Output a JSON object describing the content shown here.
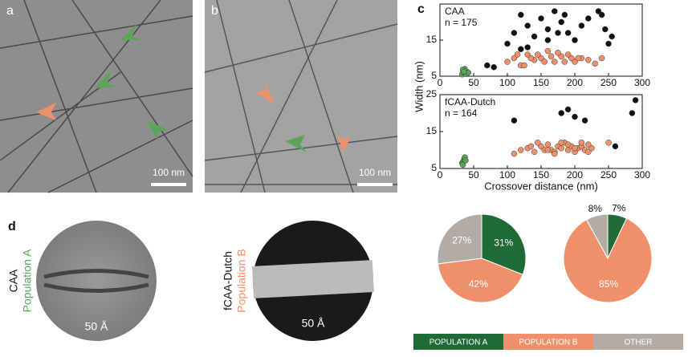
{
  "labels": {
    "panel_a": "a",
    "panel_b": "b",
    "panel_c": "c",
    "panel_d": "d",
    "scale_a": "100 nm",
    "scale_b": "100 nm",
    "d1_name": "CAA",
    "d1_population": "Population A",
    "d1_scale": "50 Å",
    "d2_name": "fCAA-Dutch",
    "d2_population": "Population B",
    "d2_scale": "50 Å"
  },
  "chart_data": [
    {
      "type": "scatter",
      "annotations": [
        "CAA",
        "n = 175"
      ],
      "ylabel": "Width (nm)",
      "xlim": [
        0,
        300
      ],
      "xticks": [
        0,
        50,
        100,
        150,
        200,
        250,
        300
      ],
      "ylim": [
        5,
        25
      ],
      "yticks": [
        5,
        15
      ],
      "series": [
        {
          "color": "#5aa55a",
          "x": [
            33,
            35,
            36,
            38,
            40,
            37,
            34,
            39,
            42,
            36
          ],
          "values": [
            5.5,
            6,
            6.5,
            5.8,
            6.2,
            7,
            6.8,
            5.6,
            6,
            6.3
          ]
        },
        {
          "color": "#f0906a",
          "x": [
            100,
            110,
            120,
            130,
            140,
            150,
            160,
            170,
            180,
            190,
            200,
            210,
            220,
            230,
            240,
            115,
            135,
            155,
            175,
            195,
            125,
            165,
            145,
            185,
            205
          ],
          "values": [
            9,
            10,
            8,
            11,
            9.5,
            10,
            12,
            9,
            10.5,
            11,
            9,
            10,
            9.5,
            8.5,
            10,
            11,
            10,
            9,
            11.5,
            10,
            8,
            10.5,
            11,
            9,
            10
          ]
        },
        {
          "color": "#111111",
          "x": [
            70,
            80,
            100,
            110,
            120,
            130,
            140,
            150,
            160,
            170,
            180,
            190,
            200,
            210,
            220,
            240,
            245,
            250,
            255,
            130,
            160,
            185,
            235,
            120,
            175
          ],
          "values": [
            8,
            7.5,
            14,
            17,
            22,
            19,
            16,
            21,
            18,
            23,
            20,
            17,
            15,
            19,
            21,
            22,
            18,
            14,
            16,
            13,
            15,
            22,
            23,
            12.5,
            17
          ]
        }
      ]
    },
    {
      "type": "scatter",
      "annotations": [
        "fCAA-Dutch",
        "n = 164"
      ],
      "xlabel": "Crossover distance (nm)",
      "xlim": [
        0,
        300
      ],
      "xticks": [
        0,
        50,
        100,
        150,
        200,
        250,
        300
      ],
      "ylim": [
        5,
        25
      ],
      "yticks": [
        5,
        15,
        25
      ],
      "series": [
        {
          "color": "#5aa55a",
          "x": [
            33,
            35,
            36,
            37,
            34,
            38
          ],
          "values": [
            6.5,
            7,
            7.5,
            8,
            6,
            7.2
          ]
        },
        {
          "color": "#f0906a",
          "x": [
            110,
            120,
            130,
            140,
            150,
            155,
            160,
            165,
            170,
            175,
            180,
            185,
            190,
            195,
            200,
            205,
            210,
            215,
            220,
            225,
            145,
            170,
            190,
            210,
            250,
            135,
            160,
            180,
            200,
            220
          ],
          "values": [
            9,
            10,
            10.5,
            9.5,
            11,
            10,
            11.5,
            10,
            9.5,
            11,
            10.5,
            12,
            10,
            11,
            9.5,
            10.5,
            11,
            10,
            9.5,
            10.5,
            12,
            9,
            11.5,
            12,
            12,
            11,
            10,
            12,
            10.5,
            11.5
          ]
        },
        {
          "color": "#111111",
          "x": [
            110,
            180,
            190,
            200,
            215,
            260,
            285,
            290
          ],
          "values": [
            18,
            20,
            21,
            19,
            18,
            11,
            20,
            23.5
          ]
        }
      ]
    },
    {
      "type": "pie",
      "categories": [
        "POPULATION A",
        "POPULATION B",
        "OTHER"
      ],
      "colors": [
        "#1f6b35",
        "#f0906a",
        "#b3aba6"
      ],
      "values": [
        31,
        42,
        27
      ],
      "value_labels": [
        "31%",
        "42%",
        "27%"
      ]
    },
    {
      "type": "pie",
      "colors": [
        "#1f6b35",
        "#f0906a",
        "#b3aba6"
      ],
      "values": [
        7,
        85,
        8
      ],
      "value_labels": [
        "7%",
        "85%",
        "8%"
      ]
    }
  ]
}
